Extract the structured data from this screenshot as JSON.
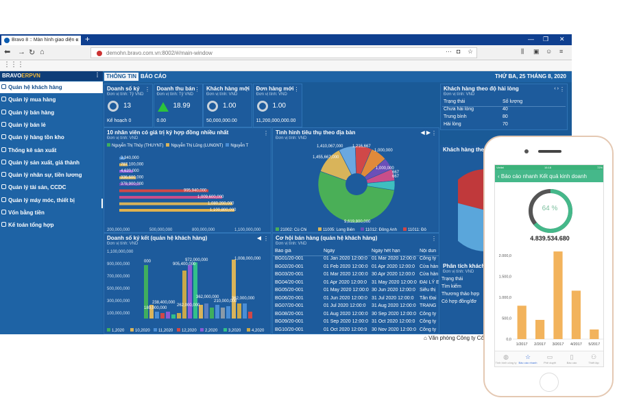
{
  "browser": {
    "tab_title": "Bravo 8 :: Màn hình giao diện c",
    "url": "demohn.bravo.com.vn:8002/#/main-window",
    "new_tab": "+",
    "minimize": "—",
    "maximize": "❐",
    "close": "✕"
  },
  "sidebar": {
    "logo_main": "BRAVO",
    "logo_sub": "ERPVN",
    "items": [
      {
        "label": "Quản hệ khách hàng",
        "active": true
      },
      {
        "label": "Quản lý mua hàng"
      },
      {
        "label": "Quản lý bán hàng"
      },
      {
        "label": "Quản lý bán lẻ"
      },
      {
        "label": "Quản lý hàng tồn kho"
      },
      {
        "label": "Thống kê sản xuất"
      },
      {
        "label": "Quản lý sản xuất, giá thành"
      },
      {
        "label": "Quản lý nhân sự, tiền lương"
      },
      {
        "label": "Quản lý tài sản, CCDC"
      },
      {
        "label": "Quản lý máy móc, thiết bị"
      },
      {
        "label": "Vốn bằng tiền"
      },
      {
        "label": "Kế toán tổng hợp"
      }
    ]
  },
  "header": {
    "tab_info": "THÔNG TIN",
    "tab_report": "BÁO CÁO",
    "date": "THỨ BA, 25 THÁNG 8, 2020"
  },
  "kpis": [
    {
      "title": "Doanh số ký",
      "unit": "Đơn vị tính: Tỷ VND",
      "value": "13",
      "footer": "Kế hoạch 0",
      "indicator": "ring"
    },
    {
      "title": "Doanh thu bán",
      "unit": "Đơn vị tính: Tỷ VND",
      "value": "18.99",
      "footer": "0.00",
      "indicator": "up"
    },
    {
      "title": "Khách hàng mới",
      "unit": "Đơn vị tính: VND",
      "value": "1.00",
      "footer": "50,000,000.00",
      "indicator": "ring"
    },
    {
      "title": "Đơn hàng mới",
      "unit": "Đơn vị tính: VND",
      "value": "1.00",
      "footer": "11,200,000,000.00",
      "indicator": "ring"
    }
  ],
  "satisfaction": {
    "title": "Khách hàng theo độ hài lòng",
    "unit": "Đơn vị tính: VND",
    "col1": "Trạng thái",
    "col2": "Số lượng",
    "rows": [
      {
        "status": "Chưa hài lòng",
        "count": "40"
      },
      {
        "status": "Trung bình",
        "count": "80"
      },
      {
        "status": "Hài lòng",
        "count": "70"
      }
    ]
  },
  "right_mid": {
    "title": "Khách hàng theo",
    "color_red": "#c0393b",
    "color_blue": "#5aa6db"
  },
  "analysis": {
    "title": "Phân tích khách",
    "unit": "Đơn vị tính: VND",
    "col1": "Trạng thái",
    "rows": [
      "Tìm kiếm",
      "Thương thảo hợp",
      "Có hợp đồng/đơ"
    ]
  },
  "top10": {
    "title": "10 nhân viên có giá trị ký hợp đồng nhiều nhất",
    "unit": "Đơn vị tính: VND",
    "legend": [
      {
        "label": "Nguyễn Thị Thủy (THUYNT)",
        "color": "#3fae5e"
      },
      {
        "label": "Nguyễn Thị Lũng (LUNGNT)",
        "color": "#d9b45a"
      },
      {
        "label": "Nguyễn T",
        "color": "#4a8ed6"
      }
    ],
    "bar_labels": [
      "3,340,000",
      "787,100,000",
      "4,620,000",
      "336,600,000",
      "378,900,000",
      "995,940,000",
      "1,009,600,000",
      "1,080,200,000",
      "1,100,800,000"
    ],
    "axis": [
      "200,000,000",
      "500,000,000",
      "800,000,000",
      "1,100,000,000"
    ]
  },
  "region": {
    "title": "Tình hình tiêu thụ theo địa bàn",
    "unit": "Đơn vị tính: VND",
    "labels": [
      "1,410,067,000",
      "1,216,667",
      "1,455,667,000",
      "1,000,000",
      "1,000,000",
      "667",
      "667",
      "9,619,800,000"
    ],
    "legend": [
      {
        "label": "21002: Cù Chi",
        "color": "#4aaf57"
      },
      {
        "label": "11005: Long Biên",
        "color": "#d9b45a"
      },
      {
        "label": "11012: Đông Anh",
        "color": "#6b4fb8"
      },
      {
        "label": "11011: Đô",
        "color": "#d04848"
      }
    ]
  },
  "signed": {
    "title": "Doanh số ký kết (quản hệ khách hàng)",
    "unit": "Đơn vị tính: VND",
    "yticks": [
      "1,100,000,000",
      "900,000,000",
      "700,000,000",
      "500,000,000",
      "300,000,000",
      "100,000,000"
    ],
    "value_labels": [
      "000",
      "905,400,000",
      "972,000,000",
      "1,008,000,000",
      "238,400,000",
      "180,000,000",
      "362,000,000",
      "210,000,000",
      "362,000,000",
      "262,000,000"
    ],
    "legend": [
      {
        "label": "1,2020",
        "color": "#3fae5e"
      },
      {
        "label": "10,2020",
        "color": "#d9b45a"
      },
      {
        "label": "11,2020",
        "color": "#4a8ed6"
      },
      {
        "label": "12,2020",
        "color": "#d04848"
      },
      {
        "label": "2,2020",
        "color": "#8a5bd6"
      },
      {
        "label": "3,2020",
        "color": "#32c08a"
      },
      {
        "label": "4,2020",
        "color": "#c9a84a"
      }
    ]
  },
  "quotes": {
    "title": "Cơ hội bán hàng (quản hệ khách hàng)",
    "unit": "Đơn vị tính: VND",
    "cols": [
      "Báo giá",
      "Ngày",
      "Ngày hết hạn",
      "Nội dun"
    ],
    "rows": [
      {
        "code": "BG01/20-001",
        "date": "01 Jan 2020 12:00:0",
        "exp": "01 Mar 2020 12:00:0",
        "note": "Công ty"
      },
      {
        "code": "BG02/20-001",
        "date": "01 Feb 2020 12:00:0",
        "exp": "01 Apr 2020 12:00:0",
        "note": "Cửa hàn"
      },
      {
        "code": "BG03/20-001",
        "date": "01 Mar 2020 12:00:0",
        "exp": "30 Apr 2020 12:00:0",
        "note": "Cửa hàn"
      },
      {
        "code": "BG04/20-001",
        "date": "01 Apr 2020 12:00:0",
        "exp": "31 May 2020 12:00:0",
        "note": "ĐẠI LÝ E"
      },
      {
        "code": "BG05/20-001",
        "date": "01 May 2020 12:00:0",
        "exp": "30 Jun 2020 12:00:0",
        "note": "Siêu thị"
      },
      {
        "code": "BG06/20-001",
        "date": "01 Jun 2020 12:00:0",
        "exp": "31 Jul 2020 12:00:0",
        "note": "Tân Đại"
      },
      {
        "code": "BG07/20-001",
        "date": "01 Jul 2020 12:00:0",
        "exp": "31 Aug 2020 12:00:0",
        "note": "TRANG"
      },
      {
        "code": "BG08/20-001",
        "date": "01 Aug 2020 12:00:0",
        "exp": "30 Sep 2020 12:00:0",
        "note": "Công ty"
      },
      {
        "code": "BG09/20-001",
        "date": "01 Sep 2020 12:00:0",
        "exp": "31 Oct 2020 12:00:0",
        "note": "Công ty"
      },
      {
        "code": "BG10/20-001",
        "date": "01 Oct 2020 12:00:0",
        "exp": "30 Nov 2020 12:00:0",
        "note": "Công ty"
      }
    ]
  },
  "footer": {
    "office": "Văn phòng Công ty Cổ"
  },
  "phone": {
    "status_left": "Viettel",
    "status_time": "16:18",
    "status_right": "72%",
    "back_label": "Báo cáo nhanh",
    "screen_title": "Kết quả kinh doanh",
    "gauge_text": "64 %",
    "total": "4.839.534.680",
    "tabs": [
      "Tình hình công ty",
      "Báo cáo nhanh",
      "Phê duyệt",
      "Báo cáo",
      "Thiết lập"
    ]
  },
  "chart_data": {
    "type": "bar",
    "categories": [
      "1/2017",
      "2/2017",
      "3/2017",
      "4/2017",
      "5/2017"
    ],
    "values": [
      800,
      460,
      2100,
      1160,
      230
    ],
    "yticks": [
      "0,0",
      "500,0",
      "1.000,0",
      "1.500,0",
      "2.000,0"
    ],
    "ylim": [
      0,
      2200
    ],
    "gauge": 64,
    "bar_color": "#f2b35c",
    "gauge_color": "#45b88a"
  }
}
